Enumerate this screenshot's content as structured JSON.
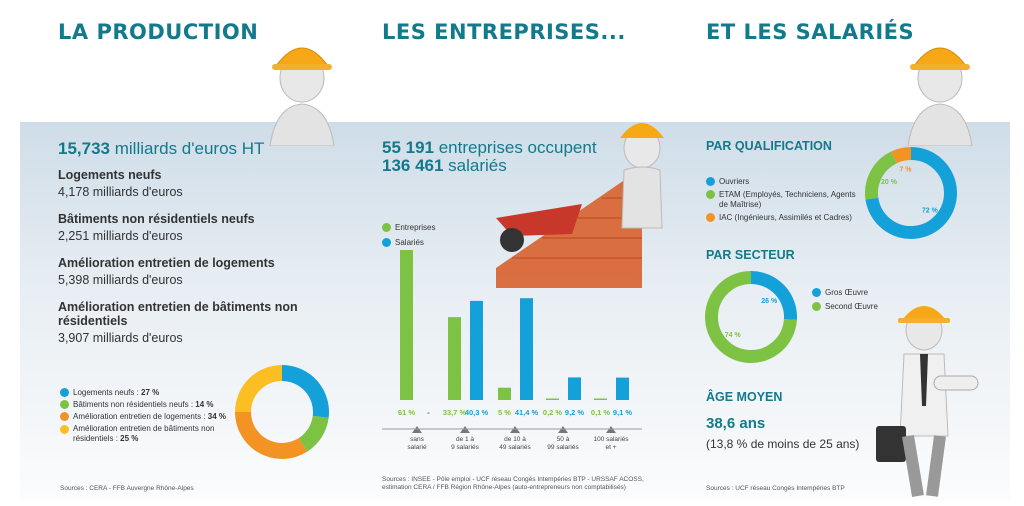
{
  "titles": {
    "production": "LA PRODUCTION",
    "entreprises": "LES ENTREPRISES...",
    "salaries": "ET LES SALARIÉS"
  },
  "colors": {
    "teal": "#137a8c",
    "blue": "#14a0d8",
    "green": "#7dc242",
    "orange": "#f39324",
    "yellow": "#fbbf24"
  },
  "production": {
    "total_value": "15,733",
    "total_unit": "milliards d'euros HT",
    "items": [
      {
        "label": "Logements neufs",
        "value": "4,178 milliards d'euros"
      },
      {
        "label": "Bâtiments non résidentiels neufs",
        "value": "2,251 milliards d'euros"
      },
      {
        "label": "Amélioration entretien de logements",
        "value": "5,398 milliards d'euros"
      },
      {
        "label": "Amélioration entretien de bâtiments non résidentiels",
        "value": "3,907 milliards d'euros"
      }
    ],
    "legend": [
      {
        "text": "Logements neufs : ",
        "pct": "27 %",
        "color": "#14a0d8"
      },
      {
        "text": "Bâtiments non résidentiels neufs : ",
        "pct": "14 %",
        "color": "#7dc242"
      },
      {
        "text": "Amélioration entretien de logements : ",
        "pct": "34 %",
        "color": "#f39324"
      },
      {
        "text": "Amélioration entretien de bâtiments non résidentiels : ",
        "pct": "25 %",
        "color": "#fbbf24"
      }
    ],
    "source": "Sources : CERA - FFB Auvergne Rhône-Alpes"
  },
  "entreprises": {
    "line1_num": "55 191",
    "line1_text": " entreprises occupent",
    "line2_num": "136 461",
    "line2_text": " salariés",
    "legend": [
      {
        "label": "Entreprises",
        "color": "#7dc242"
      },
      {
        "label": "Salariés",
        "color": "#14a0d8"
      }
    ],
    "source": "Sources : INSEE - Pôle emploi - UCF réseau Congés Intempéries BTP - URSSAF ACOSS, estimation CERA / FFB Région Rhône-Alpes (auto-entrepreneurs non comptabilisés)"
  },
  "salaries": {
    "qualification_title": "PAR QUALIFICATION",
    "qualification_legend": [
      {
        "label": "Ouvriers",
        "color": "#14a0d8"
      },
      {
        "label": "ETAM (Employés, Techniciens, Agents de Maîtrise)",
        "color": "#7dc242"
      },
      {
        "label": "IAC (Ingénieurs, Assimilés et Cadres)",
        "color": "#f39324"
      }
    ],
    "secteur_title": "PAR SECTEUR",
    "secteur_legend": [
      {
        "label": "Gros Œuvre",
        "color": "#14a0d8"
      },
      {
        "label": "Second Œuvre",
        "color": "#7dc242"
      }
    ],
    "age_title": "ÂGE MOYEN",
    "age_value": "38,6 ans",
    "age_note": "(13,8 % de moins de 25 ans)",
    "source": "Sources : UCF réseau Congés Intempéries BTP"
  },
  "chart_data": [
    {
      "type": "pie",
      "title": "",
      "labels": [
        "Logements neufs",
        "Bâtiments non résidentiels neufs",
        "Amélioration entretien de logements",
        "Amélioration entretien de bâtiments non résidentiels"
      ],
      "values": [
        27,
        14,
        34,
        25
      ],
      "colors": [
        "#14a0d8",
        "#7dc242",
        "#f39324",
        "#fbbf24"
      ]
    },
    {
      "type": "bar",
      "categories": [
        "sans salarié",
        "de 1 à 9 salariés",
        "de 10 à 49 salariés",
        "50 à 99 salariés",
        "100 salariés et +"
      ],
      "series": [
        {
          "name": "Entreprises",
          "color": "#7dc242",
          "values": [
            61,
            33.7,
            5,
            0.2,
            0.1
          ],
          "labels": [
            "61 %",
            "33,7 %",
            "5 %",
            "0,2 %",
            "0,1 %"
          ]
        },
        {
          "name": "Salariés",
          "color": "#14a0d8",
          "values": [
            null,
            40.3,
            41.4,
            9.2,
            9.1
          ],
          "labels": [
            "-",
            "40,3 %",
            "41,4 %",
            "9,2 %",
            "9,1 %"
          ]
        }
      ]
    },
    {
      "type": "pie",
      "title": "PAR QUALIFICATION",
      "labels": [
        "Ouvriers",
        "ETAM (Employés, Techniciens, Agents de Maîtrise)",
        "IAC (Ingénieurs, Assimilés et Cadres)"
      ],
      "values": [
        72,
        20,
        7
      ],
      "value_labels": [
        "72 %",
        "20 %",
        "7 %"
      ],
      "colors": [
        "#14a0d8",
        "#7dc242",
        "#f39324"
      ]
    },
    {
      "type": "pie",
      "title": "PAR SECTEUR",
      "labels": [
        "Gros Œuvre",
        "Second Œuvre"
      ],
      "values": [
        26,
        74
      ],
      "value_labels": [
        "26 %",
        "74 %"
      ],
      "colors": [
        "#14a0d8",
        "#7dc242"
      ]
    }
  ]
}
